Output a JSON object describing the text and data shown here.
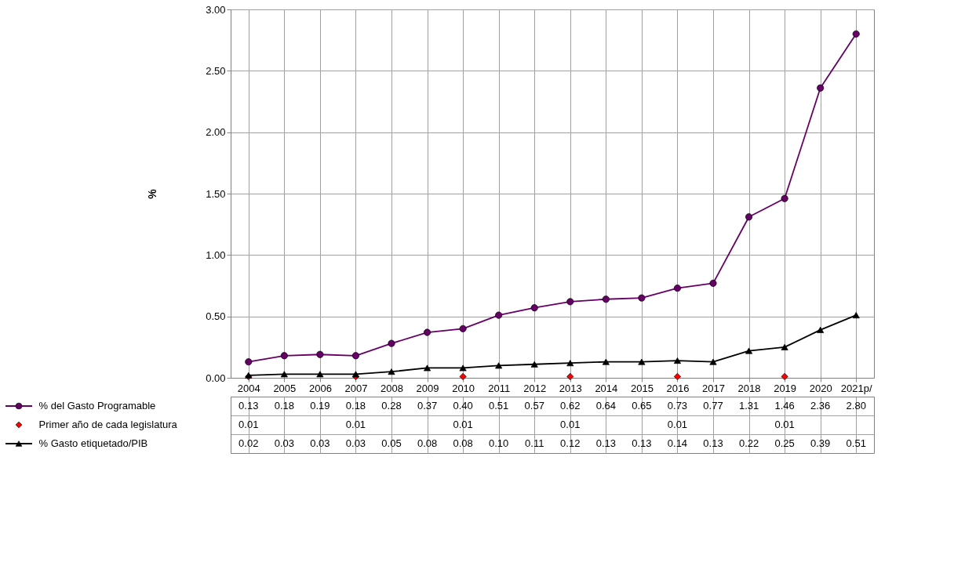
{
  "chart_data": {
    "type": "line",
    "ylabel": "%",
    "categories": [
      "2004",
      "2005",
      "2006",
      "2007",
      "2008",
      "2009",
      "2010",
      "2011",
      "2012",
      "2013",
      "2014",
      "2015",
      "2016",
      "2017",
      "2018",
      "2019",
      "2020",
      "2021p/"
    ],
    "series": [
      {
        "name": "% del Gasto Programable",
        "color": "#660066",
        "marker": "circle",
        "values": [
          0.13,
          0.18,
          0.19,
          0.18,
          0.28,
          0.37,
          0.4,
          0.51,
          0.57,
          0.62,
          0.64,
          0.65,
          0.73,
          0.77,
          1.31,
          1.46,
          2.36,
          2.8
        ],
        "value_labels": [
          "0.13",
          "0.18",
          "0.19",
          "0.18",
          "0.28",
          "0.37",
          "0.40",
          "0.51",
          "0.57",
          "0.62",
          "0.64",
          "0.65",
          "0.73",
          "0.77",
          "1.31",
          "1.46",
          "2.36",
          "2.80"
        ]
      },
      {
        "name": "Primer año de cada legislatura",
        "type": "scatter",
        "color": "#ff0000",
        "marker": "diamond",
        "values": [
          0.01,
          null,
          null,
          0.01,
          null,
          null,
          0.01,
          null,
          null,
          0.01,
          null,
          null,
          0.01,
          null,
          null,
          0.01,
          null,
          null
        ],
        "value_labels": [
          "0.01",
          null,
          null,
          "0.01",
          null,
          null,
          "0.01",
          null,
          null,
          "0.01",
          null,
          null,
          "0.01",
          null,
          null,
          "0.01",
          null,
          null
        ]
      },
      {
        "name": "% Gasto etiquetado/PIB",
        "color": "#000000",
        "marker": "triangle",
        "values": [
          0.02,
          0.03,
          0.03,
          0.03,
          0.05,
          0.08,
          0.08,
          0.1,
          0.11,
          0.12,
          0.13,
          0.13,
          0.14,
          0.13,
          0.22,
          0.25,
          0.39,
          0.51
        ],
        "value_labels": [
          "0.02",
          "0.03",
          "0.03",
          "0.03",
          "0.05",
          "0.08",
          "0.08",
          "0.10",
          "0.11",
          "0.12",
          "0.13",
          "0.13",
          "0.14",
          "0.13",
          "0.22",
          "0.25",
          "0.39",
          "0.51"
        ]
      }
    ],
    "ylim": [
      0,
      3
    ],
    "yticks": [
      {
        "value": 0,
        "label": "0.00"
      },
      {
        "value": 0.5,
        "label": "0.50"
      },
      {
        "value": 1,
        "label": "1.00"
      },
      {
        "value": 1.5,
        "label": "1.50"
      },
      {
        "value": 2,
        "label": "2.00"
      },
      {
        "value": 2.5,
        "label": "2.50"
      },
      {
        "value": 3,
        "label": "3.00"
      }
    ],
    "grid": true,
    "legend": "bottom"
  }
}
